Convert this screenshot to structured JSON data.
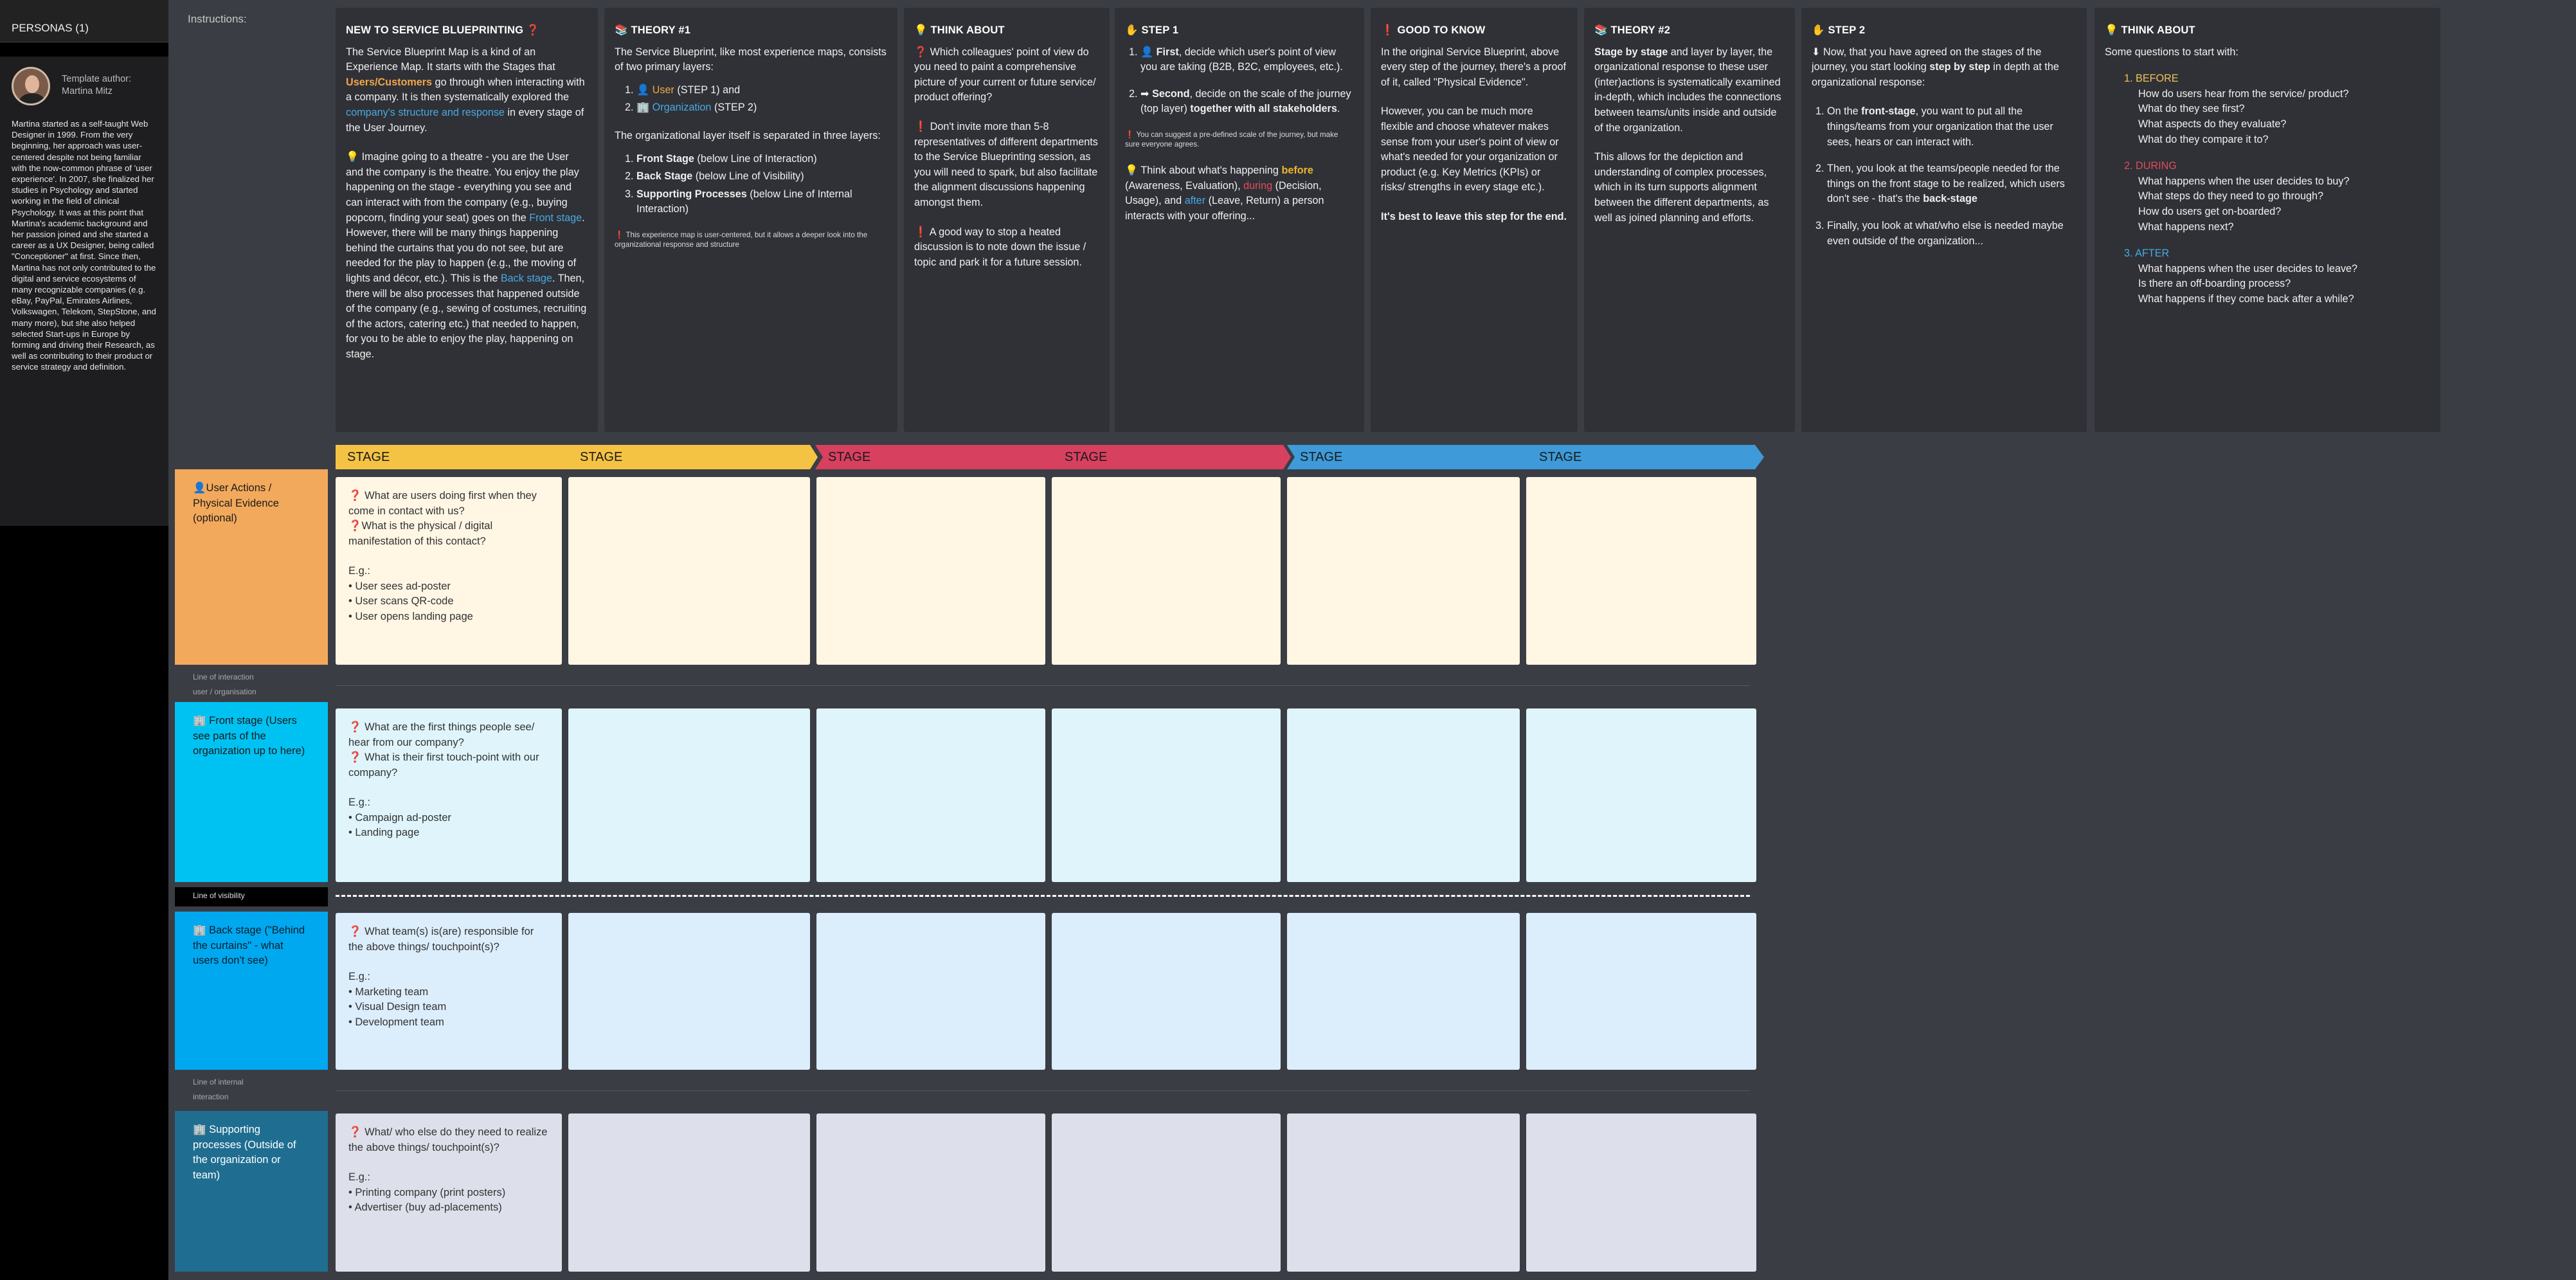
{
  "sidebar": {
    "title": "PERSONAS (1)",
    "author_line": "Template author: Martina Mitz",
    "bio": "Martina started as a self-taught Web Designer in 1999. From the very beginning, her approach was user-centered despite not being familiar with the now-common phrase of 'user experience'. In 2007, she finalized her studies in Psychology and started working in the field of clinical Psychology. It was at this point that Martina's academic background and her passion joined and she started a career as a UX Designer, being called \"Conceptioner\" at first. Since then, Martina has not only contributed to the digital and service ecosystems of many recognizable companies (e.g. eBay, PayPal, Emirates Airlines, Volkswagen, Telekom, StepStone, and many more), but she also helped selected Start-ups in Europe by forming and driving their Research, as well as contributing to their product or service strategy and definition."
  },
  "instructions_label": "Instructions:",
  "cards": {
    "c1": {
      "title": "NEW TO SERVICE BLUEPRINTING ❓",
      "p1a": "The Service Blueprint Map is a kind of an Experience Map. It starts with the Stages that ",
      "p1b": "Users/Customers",
      "p1c": " go through when interacting with a company. It is then systematically explored the ",
      "p1d": "company's structure and response",
      "p1e": " in every stage of the User Journey.",
      "p2a": "💡 Imagine going to a theatre - you are the User and the company is the theatre. You enjoy the play happening on the stage - everything you see and can interact with from the company (e.g., buying popcorn, finding your seat) goes on the ",
      "p2b": "Front stage",
      "p2c": ". However, there will be many things happening behind the curtains that you do not see, but are needed for the play to happen (e.g., the moving of lights and décor, etc.). This is the ",
      "p2d": "Back stage",
      "p2e": ". Then, there will be also processes that happened outside of the company (e.g., sewing of costumes, recruiting of the actors, catering etc.) that needed to happen, for you to be able to enjoy the play, happening on stage."
    },
    "c2": {
      "title": "📚 THEORY #1",
      "intro": "The Service Blueprint, like most experience maps, consists of two primary layers:",
      "l1a": "👤 ",
      "l1b": "User",
      "l1c": " (STEP 1) and",
      "l2a": "🏢 ",
      "l2b": "Organization",
      "l2c": " (STEP 2)",
      "org_intro": "The organizational layer itself is separated in three layers:",
      "o1a": "Front Stage",
      "o1b": " (below Line of Interaction)",
      "o2a": "Back Stage",
      "o2b": " (below Line of Visibility)",
      "o3a": "Supporting Processes",
      "o3b": " (below Line of Internal Interaction)",
      "note": "❗ This experience map is user-centered, but it allows a deeper look into the organizational response and structure"
    },
    "c3": {
      "title": "💡 THINK ABOUT",
      "p1": "❓ Which colleagues' point of view do you need to paint a comprehensive picture of your current or future service/ product offering?",
      "p2": "❗ Don't invite more than 5-8 representatives of different departments to the Service Blueprinting session, as you will need to spark, but also facilitate the alignment discussions happening amongst them.",
      "p3": "❗ A good way to stop a heated discussion is to note down the issue / topic and park it for a future session."
    },
    "c4": {
      "title": "✋ STEP 1",
      "s1a": "👤 ",
      "s1b": "First",
      "s1c": ", decide which user's point of view you are taking (B2B, B2C, employees, etc.).",
      "s2a": "➡ ",
      "s2b": "Second",
      "s2c": ", decide on the scale of the journey (top layer) ",
      "s2d": "together with all stakeholders",
      "s2e": ".",
      "note": "❗ You can suggest a pre-defined scale of the journey, but make sure everyone agrees.",
      "p1a": "💡 Think about what's happening ",
      "p1b": "before",
      "p1c": " (Awareness, Evaluation), ",
      "p1d": "during",
      "p1e": " (Decision, Usage), and ",
      "p1f": "after",
      "p1g": " (Leave, Return) a person interacts with your offering..."
    },
    "c5": {
      "title": "❗ GOOD TO KNOW",
      "p1": "In the original Service Blueprint, above every step of the journey, there's a proof of it, called \"Physical Evidence\".",
      "p2": "However, you can be much more flexible and choose whatever makes sense from your user's point of view or what's needed for your organization or product (e.g. Key Metrics (KPIs) or risks/ strengths in every stage etc.).",
      "p3": "It's best to leave this step for the end."
    },
    "c6": {
      "title": "📚 THEORY #2",
      "p1a": "Stage by stage",
      "p1b": " and layer by layer, the organizational response to these user (inter)actions is systematically examined in-depth, which includes the connections between teams/units inside and outside of the organization.",
      "p2": "This allows for the depiction and understanding of complex processes, which in its turn supports alignment between the different departments, as well as joined planning and efforts."
    },
    "c7": {
      "title": "✋ STEP 2",
      "p1a": "⬇ Now, that you have agreed on the stages of the journey, you start looking ",
      "p1b": "step by step",
      "p1c": " in depth at the organizational response:",
      "s1a": "On the ",
      "s1b": "front-stage",
      "s1c": ", you want to put all the things/teams from your organization that the user sees, hears or can interact with.",
      "s2a": "Then, you look at the teams/people needed for the things on the front stage to be realized, which users don't see - that's the ",
      "s2b": "back-stage",
      "s3": "Finally, you look at what/who else is needed maybe even outside of the organization..."
    },
    "c8": {
      "title": "💡 THINK ABOUT",
      "intro": "Some questions to start with:",
      "h1n": "1.",
      "h1": "BEFORE",
      "q1": "How do users hear from the service/ product?",
      "q2": "What do they see first?",
      "q3": "What aspects do they evaluate?",
      "q4": "What do they compare it to?",
      "h2n": "2.",
      "h2": "DURING",
      "q5": "What happens when the user decides to buy?",
      "q6": "What steps do they need to go through?",
      "q7": "How do users get on-boarded?",
      "q8": "What happens next?",
      "h3n": "3.",
      "h3": "AFTER",
      "q9": "What happens when the user decides to leave?",
      "q10": "Is there an off-boarding process?",
      "q11": "What happens if they come back after a while?"
    }
  },
  "stages": [
    "STAGE",
    "STAGE",
    "STAGE",
    "STAGE",
    "STAGE",
    "STAGE"
  ],
  "colors": {
    "stage_yellow": "#f5c344",
    "stage_red": "#d8405f",
    "stage_blue": "#3e9ad8",
    "row_user": "#f2a95c",
    "row_front": "#00c2f2",
    "row_back": "#00a8f0",
    "row_support": "#1f6e91",
    "cell_user": "#fff6e4",
    "cell_front": "#dff5fb",
    "cell_back": "#dcedfb",
    "cell_support": "#dde0eb"
  },
  "rows": {
    "user": {
      "label": "👤User Actions / Physical Evidence (optional)",
      "example": [
        "❓ What are users doing first when they come in contact with us?",
        "❓What is the physical / digital manifestation of this contact?",
        "",
        "E.g.:",
        "• User sees ad-poster",
        "• User scans QR-code",
        "• User opens landing page"
      ]
    },
    "line_interaction": "Line of interaction user / organisation",
    "front": {
      "label": "🏢 Front stage (Users see parts of the organization up to here)",
      "example": [
        "❓ What are the first things people see/ hear from our company?",
        "❓ What is their first touch-point with our company?",
        "",
        "E.g.:",
        "• Campaign ad-poster",
        "• Landing page"
      ]
    },
    "line_visibility": "Line of visibility",
    "back": {
      "label": "🏢 Back stage (\"Behind the curtains\" - what users don't see)",
      "example": [
        "❓ What team(s) is(are) responsible for the above things/ touchpoint(s)?",
        "",
        "E.g.:",
        "• Marketing team",
        "• Visual Design team",
        "• Development team"
      ]
    },
    "line_internal": "Line of internal interaction",
    "support": {
      "label": "🏢 Supporting processes (Outside of the organization or team)",
      "example": [
        "❓ What/ who else do they need to realize the above things/ touchpoint(s)?",
        "",
        "E.g.:",
        "• Printing company (print posters)",
        "• Advertiser (buy ad-placements)"
      ]
    }
  }
}
